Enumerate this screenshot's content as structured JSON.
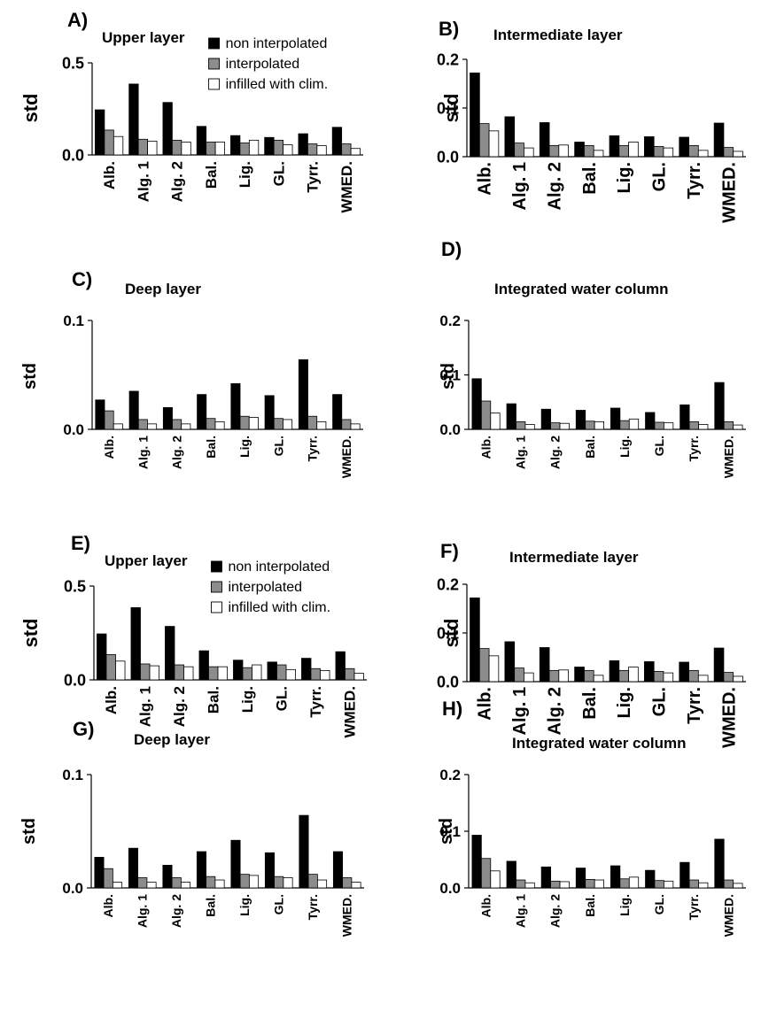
{
  "colors": {
    "non_interpolated": "#000000",
    "interpolated": "#8c8c8c",
    "infilled": "#ffffff"
  },
  "legend": {
    "non_interpolated": "non interpolated",
    "interpolated": "interpolated",
    "infilled": "infilled with clim."
  },
  "chart_data": [
    {
      "panel": "A)",
      "type": "bar",
      "title": "Upper layer",
      "ylabel": "std",
      "ylim": [
        0,
        0.5
      ],
      "yticks": [
        "0.0",
        "0.5"
      ],
      "legend_placement": "top-right",
      "categories": [
        "Alb.",
        "Alg. 1",
        "Alg. 2",
        "Bal.",
        "Lig.",
        "GL.",
        "Tyrr.",
        "WMED."
      ],
      "series": [
        {
          "name": "non interpolated",
          "values": [
            0.245,
            0.385,
            0.285,
            0.155,
            0.105,
            0.095,
            0.115,
            0.15
          ]
        },
        {
          "name": "interpolated",
          "values": [
            0.135,
            0.085,
            0.08,
            0.07,
            0.065,
            0.08,
            0.06,
            0.06
          ]
        },
        {
          "name": "infilled with clim.",
          "values": [
            0.1,
            0.075,
            0.07,
            0.07,
            0.08,
            0.055,
            0.05,
            0.035
          ]
        }
      ]
    },
    {
      "panel": "B)",
      "type": "bar",
      "title": "Intermediate layer",
      "ylabel": "std",
      "ylim": [
        0,
        0.2
      ],
      "yticks": [
        "0.0",
        "0.1",
        "0.2"
      ],
      "categories": [
        "Alb.",
        "Alg. 1",
        "Alg. 2",
        "Bal.",
        "Lig.",
        "GL.",
        "Tyrr.",
        "WMED."
      ],
      "series": [
        {
          "name": "non interpolated",
          "values": [
            0.172,
            0.082,
            0.07,
            0.03,
            0.043,
            0.041,
            0.04,
            0.069
          ]
        },
        {
          "name": "interpolated",
          "values": [
            0.068,
            0.028,
            0.023,
            0.023,
            0.023,
            0.021,
            0.023,
            0.019
          ]
        },
        {
          "name": "infilled with clim.",
          "values": [
            0.053,
            0.018,
            0.024,
            0.013,
            0.03,
            0.018,
            0.013,
            0.011
          ]
        }
      ]
    },
    {
      "panel": "C)",
      "type": "bar",
      "title": "Deep layer",
      "ylabel": "std",
      "ylim": [
        0,
        0.1
      ],
      "yticks": [
        "0.0",
        "0.1"
      ],
      "categories": [
        "Alb.",
        "Alg. 1",
        "Alg. 2",
        "Bal.",
        "Lig.",
        "GL.",
        "Tyrr.",
        "WMED."
      ],
      "series": [
        {
          "name": "non interpolated",
          "values": [
            0.027,
            0.035,
            0.02,
            0.032,
            0.042,
            0.031,
            0.064,
            0.032
          ]
        },
        {
          "name": "interpolated",
          "values": [
            0.017,
            0.009,
            0.009,
            0.01,
            0.012,
            0.01,
            0.012,
            0.009
          ]
        },
        {
          "name": "infilled with clim.",
          "values": [
            0.005,
            0.005,
            0.005,
            0.007,
            0.011,
            0.009,
            0.007,
            0.005
          ]
        }
      ]
    },
    {
      "panel": "D)",
      "type": "bar",
      "title": "Integrated water column",
      "ylabel": "std",
      "ylim": [
        0,
        0.2
      ],
      "yticks": [
        "0.0",
        "0.1",
        "0.2"
      ],
      "categories": [
        "Alb.",
        "Alg. 1",
        "Alg. 2",
        "Bal.",
        "Lig.",
        "GL.",
        "Tyrr.",
        "WMED."
      ],
      "series": [
        {
          "name": "non interpolated",
          "values": [
            0.093,
            0.047,
            0.037,
            0.035,
            0.039,
            0.031,
            0.045,
            0.086
          ]
        },
        {
          "name": "interpolated",
          "values": [
            0.052,
            0.014,
            0.012,
            0.015,
            0.016,
            0.013,
            0.014,
            0.014
          ]
        },
        {
          "name": "infilled with clim.",
          "values": [
            0.03,
            0.009,
            0.011,
            0.014,
            0.019,
            0.012,
            0.009,
            0.008
          ]
        }
      ]
    },
    {
      "panel": "E)",
      "type": "bar",
      "title": "Upper layer",
      "ylabel": "std",
      "ylim": [
        0,
        0.5
      ],
      "yticks": [
        "0.0",
        "0.5"
      ],
      "legend_placement": "top-right",
      "categories": [
        "Alb.",
        "Alg. 1",
        "Alg. 2",
        "Bal.",
        "Lig.",
        "GL.",
        "Tyrr.",
        "WMED."
      ],
      "series": [
        {
          "name": "non interpolated",
          "values": [
            0.245,
            0.385,
            0.285,
            0.155,
            0.105,
            0.095,
            0.115,
            0.15
          ]
        },
        {
          "name": "interpolated",
          "values": [
            0.135,
            0.085,
            0.08,
            0.07,
            0.065,
            0.08,
            0.06,
            0.06
          ]
        },
        {
          "name": "infilled with clim.",
          "values": [
            0.1,
            0.075,
            0.07,
            0.07,
            0.08,
            0.055,
            0.05,
            0.035
          ]
        }
      ]
    },
    {
      "panel": "F)",
      "type": "bar",
      "title": "Intermediate layer",
      "ylabel": "std",
      "ylim": [
        0,
        0.2
      ],
      "yticks": [
        "0.0",
        "0.1",
        "0.2"
      ],
      "categories": [
        "Alb.",
        "Alg. 1",
        "Alg. 2",
        "Bal.",
        "Lig.",
        "GL.",
        "Tyrr.",
        "WMED."
      ],
      "series": [
        {
          "name": "non interpolated",
          "values": [
            0.172,
            0.082,
            0.07,
            0.03,
            0.043,
            0.041,
            0.04,
            0.069
          ]
        },
        {
          "name": "interpolated",
          "values": [
            0.068,
            0.028,
            0.023,
            0.023,
            0.023,
            0.021,
            0.023,
            0.019
          ]
        },
        {
          "name": "infilled with clim.",
          "values": [
            0.053,
            0.018,
            0.024,
            0.013,
            0.03,
            0.018,
            0.013,
            0.011
          ]
        }
      ]
    },
    {
      "panel": "G)",
      "type": "bar",
      "title": "Deep layer",
      "ylabel": "std",
      "ylim": [
        0,
        0.1
      ],
      "yticks": [
        "0.0",
        "0.1"
      ],
      "categories": [
        "Alb.",
        "Alg. 1",
        "Alg. 2",
        "Bal.",
        "Lig.",
        "GL.",
        "Tyrr.",
        "WMED."
      ],
      "series": [
        {
          "name": "non interpolated",
          "values": [
            0.027,
            0.035,
            0.02,
            0.032,
            0.042,
            0.031,
            0.064,
            0.032
          ]
        },
        {
          "name": "interpolated",
          "values": [
            0.017,
            0.009,
            0.009,
            0.01,
            0.012,
            0.01,
            0.012,
            0.009
          ]
        },
        {
          "name": "infilled with clim.",
          "values": [
            0.005,
            0.005,
            0.005,
            0.007,
            0.011,
            0.009,
            0.007,
            0.005
          ]
        }
      ]
    },
    {
      "panel": "H)",
      "type": "bar",
      "title": "Integrated water column",
      "ylabel": "std",
      "ylim": [
        0,
        0.2
      ],
      "yticks": [
        "0.0",
        "0.1",
        "0.2"
      ],
      "categories": [
        "Alb.",
        "Alg. 1",
        "Alg. 2",
        "Bal.",
        "Lig.",
        "GL.",
        "Tyrr.",
        "WMED."
      ],
      "series": [
        {
          "name": "non interpolated",
          "values": [
            0.093,
            0.047,
            0.037,
            0.035,
            0.039,
            0.031,
            0.045,
            0.086
          ]
        },
        {
          "name": "interpolated",
          "values": [
            0.052,
            0.014,
            0.012,
            0.015,
            0.016,
            0.013,
            0.014,
            0.014
          ]
        },
        {
          "name": "infilled with clim.",
          "values": [
            0.03,
            0.009,
            0.011,
            0.014,
            0.019,
            0.012,
            0.009,
            0.008
          ]
        }
      ]
    }
  ]
}
